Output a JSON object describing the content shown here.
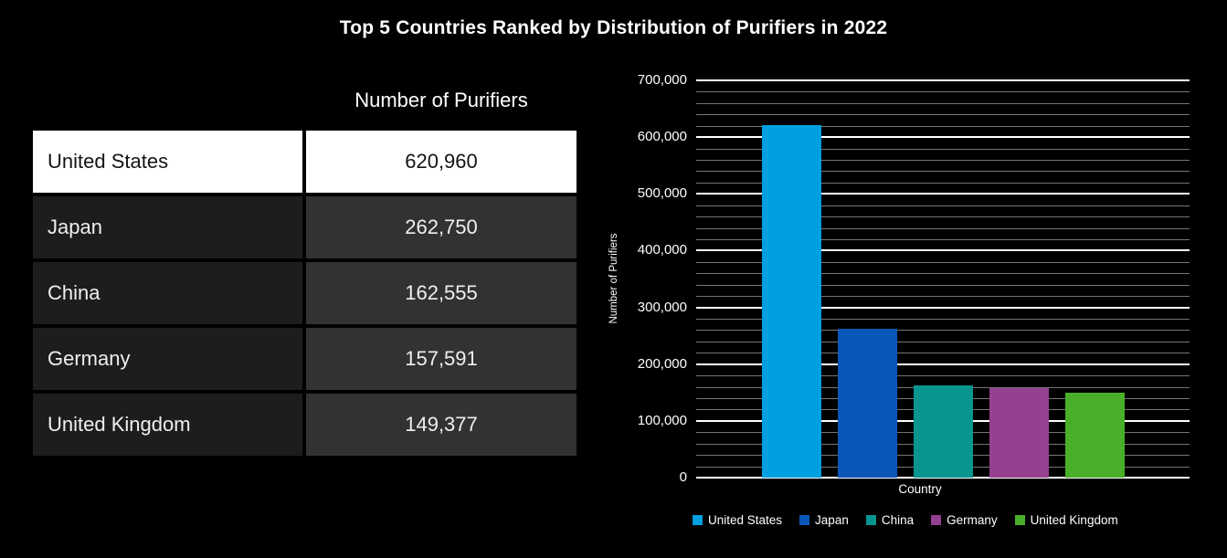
{
  "page": {
    "title": "Top 5 Countries Ranked by Distribution of Purifiers in 2022",
    "background_color": "#000000"
  },
  "table": {
    "value_column_header": "Number of Purifiers",
    "rows": [
      {
        "country": "United States",
        "value": "620,960",
        "highlighted": true
      },
      {
        "country": "Japan",
        "value": "262,750",
        "highlighted": false
      },
      {
        "country": "China",
        "value": "162,555",
        "highlighted": false
      },
      {
        "country": "Germany",
        "value": "157,591",
        "highlighted": false
      },
      {
        "country": "United Kingdom",
        "value": "149,377",
        "highlighted": false
      }
    ]
  },
  "chart_data": {
    "type": "bar",
    "title": "",
    "categories": [
      "United States",
      "Japan",
      "China",
      "Germany",
      "United Kingdom"
    ],
    "values": [
      620960,
      262750,
      162555,
      157591,
      149377
    ],
    "bar_colors": [
      "#009FE0",
      "#0A57B8",
      "#089590",
      "#95418F",
      "#49AE29"
    ],
    "xlabel": "Country",
    "ylabel": "Number of Purifiers",
    "ylim": [
      0,
      700000
    ],
    "y_major_step": 100000,
    "y_minor_step": 20000,
    "grid": "horizontal; bright white major lines, gray minor lines, black background",
    "legend_position": "bottom",
    "legend": [
      "United States",
      "Japan",
      "China",
      "Germany",
      "United Kingdom"
    ],
    "major_grid_color": "#FFFFFF",
    "minor_grid_color": "#757575"
  }
}
